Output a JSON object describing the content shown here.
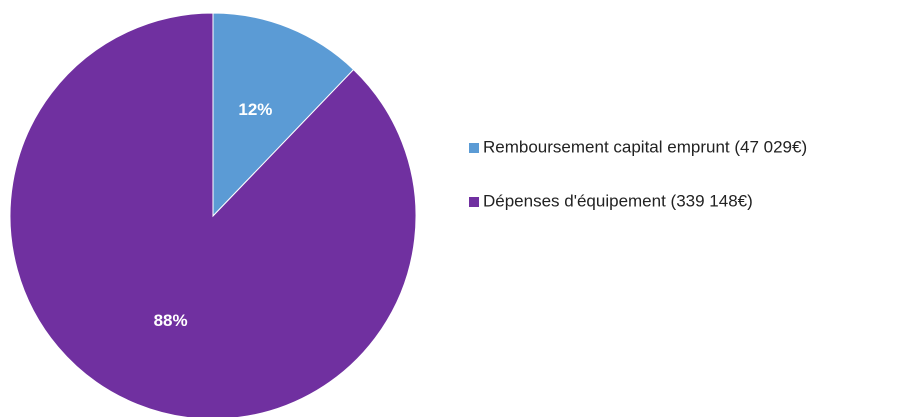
{
  "chart_data": {
    "type": "pie",
    "title": "",
    "slices": [
      {
        "name": "Remboursement capital emprunt",
        "legend_label": "Remboursement capital emprunt  (47 029€)",
        "amount": 47029,
        "percent": 12,
        "label": "12%",
        "color": "#5b9bd5"
      },
      {
        "name": "Dépenses d'équipement",
        "legend_label": "Dépenses d'équipement  (339 148€)",
        "amount": 339148,
        "percent": 88,
        "label": "88%",
        "color": "#7030a0"
      }
    ],
    "legend_position": "right",
    "start_angle": "top, clockwise"
  }
}
